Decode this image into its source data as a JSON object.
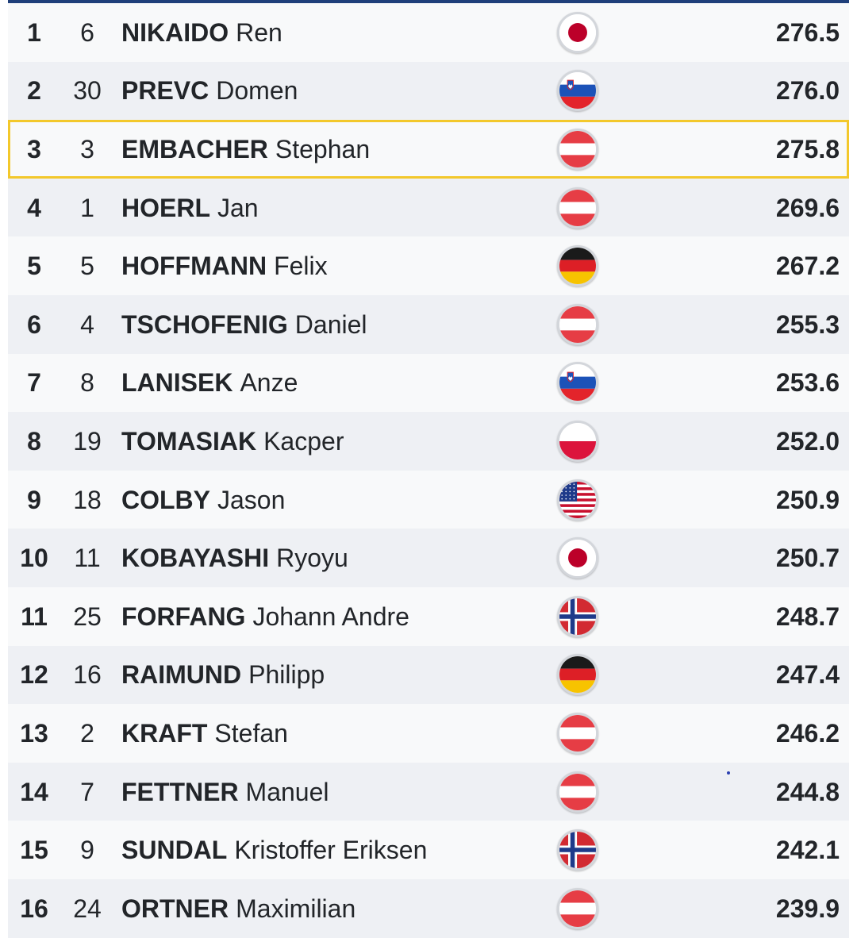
{
  "results": [
    {
      "rank": "1",
      "bib": "6",
      "last": "NIKAIDO",
      "first": "Ren",
      "country": "JPN",
      "flag_icon": "japan-flag-icon",
      "score": "276.5",
      "highlighted": false
    },
    {
      "rank": "2",
      "bib": "30",
      "last": "PREVC",
      "first": "Domen",
      "country": "SLO",
      "flag_icon": "slovenia-flag-icon",
      "score": "276.0",
      "highlighted": false
    },
    {
      "rank": "3",
      "bib": "3",
      "last": "EMBACHER",
      "first": "Stephan",
      "country": "AUT",
      "flag_icon": "austria-flag-icon",
      "score": "275.8",
      "highlighted": true
    },
    {
      "rank": "4",
      "bib": "1",
      "last": "HOERL",
      "first": "Jan",
      "country": "AUT",
      "flag_icon": "austria-flag-icon",
      "score": "269.6",
      "highlighted": false
    },
    {
      "rank": "5",
      "bib": "5",
      "last": "HOFFMANN",
      "first": "Felix",
      "country": "GER",
      "flag_icon": "germany-flag-icon",
      "score": "267.2",
      "highlighted": false
    },
    {
      "rank": "6",
      "bib": "4",
      "last": "TSCHOFENIG",
      "first": "Daniel",
      "country": "AUT",
      "flag_icon": "austria-flag-icon",
      "score": "255.3",
      "highlighted": false
    },
    {
      "rank": "7",
      "bib": "8",
      "last": "LANISEK",
      "first": "Anze",
      "country": "SLO",
      "flag_icon": "slovenia-flag-icon",
      "score": "253.6",
      "highlighted": false
    },
    {
      "rank": "8",
      "bib": "19",
      "last": "TOMASIAK",
      "first": "Kacper",
      "country": "POL",
      "flag_icon": "poland-flag-icon",
      "score": "252.0",
      "highlighted": false
    },
    {
      "rank": "9",
      "bib": "18",
      "last": "COLBY",
      "first": "Jason",
      "country": "USA",
      "flag_icon": "usa-flag-icon",
      "score": "250.9",
      "highlighted": false
    },
    {
      "rank": "10",
      "bib": "11",
      "last": "KOBAYASHI",
      "first": "Ryoyu",
      "country": "JPN",
      "flag_icon": "japan-flag-icon",
      "score": "250.7",
      "highlighted": false
    },
    {
      "rank": "11",
      "bib": "25",
      "last": "FORFANG",
      "first": "Johann Andre",
      "country": "NOR",
      "flag_icon": "norway-flag-icon",
      "score": "248.7",
      "highlighted": false
    },
    {
      "rank": "12",
      "bib": "16",
      "last": "RAIMUND",
      "first": "Philipp",
      "country": "GER",
      "flag_icon": "germany-flag-icon",
      "score": "247.4",
      "highlighted": false
    },
    {
      "rank": "13",
      "bib": "2",
      "last": "KRAFT",
      "first": "Stefan",
      "country": "AUT",
      "flag_icon": "austria-flag-icon",
      "score": "246.2",
      "highlighted": false
    },
    {
      "rank": "14",
      "bib": "7",
      "last": "FETTNER",
      "first": "Manuel",
      "country": "AUT",
      "flag_icon": "austria-flag-icon",
      "score": "244.8",
      "highlighted": false
    },
    {
      "rank": "15",
      "bib": "9",
      "last": "SUNDAL",
      "first": "Kristoffer Eriksen",
      "country": "NOR",
      "flag_icon": "norway-flag-icon",
      "score": "242.1",
      "highlighted": false
    },
    {
      "rank": "16",
      "bib": "24",
      "last": "ORTNER",
      "first": "Maximilian",
      "country": "AUT",
      "flag_icon": "austria-flag-icon",
      "score": "239.9",
      "highlighted": false
    }
  ],
  "colors": {
    "header_rule": "#1f3f7a",
    "row_odd": "#f8f9fa",
    "row_even": "#eef0f4",
    "highlight_border": "#f3c82b",
    "text": "#222529"
  }
}
